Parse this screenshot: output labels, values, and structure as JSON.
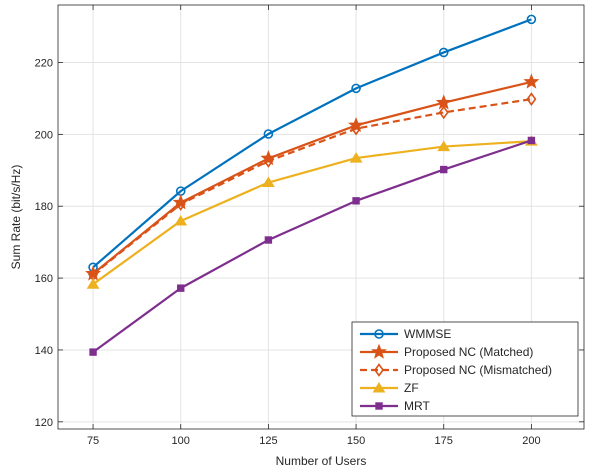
{
  "chart_data": {
    "type": "line",
    "xlabel": "Number of Users",
    "ylabel": "Sum Rate (bit/s/Hz)",
    "xlim": [
      65,
      215
    ],
    "ylim": [
      118,
      236
    ],
    "xticks": [
      75,
      100,
      125,
      150,
      175,
      200
    ],
    "yticks": [
      120,
      140,
      160,
      180,
      200,
      220
    ],
    "grid": true,
    "legend_position": "bottom-right",
    "x": [
      75,
      100,
      125,
      150,
      175,
      200
    ],
    "series": [
      {
        "name": "WMMSE",
        "color": "#0072BD",
        "marker": "circle",
        "dash": "solid",
        "values": [
          163.0,
          184.2,
          200.1,
          212.8,
          222.8,
          232.0
        ]
      },
      {
        "name": "Proposed NC (Matched)",
        "color": "#D95319",
        "marker": "star",
        "dash": "solid",
        "values": [
          161.2,
          181.0,
          193.3,
          202.5,
          208.8,
          214.6
        ]
      },
      {
        "name": "Proposed NC (Mismatched)",
        "color": "#D95319",
        "marker": "diamond",
        "dash": "dashed",
        "values": [
          161.0,
          180.6,
          192.6,
          201.6,
          206.1,
          209.8
        ]
      },
      {
        "name": "ZF",
        "color": "#EDB120",
        "marker": "triangle",
        "dash": "solid",
        "values": [
          158.3,
          175.9,
          186.6,
          193.4,
          196.6,
          198.1
        ]
      },
      {
        "name": "MRT",
        "color": "#7E2F8E",
        "marker": "square",
        "dash": "solid",
        "values": [
          139.4,
          157.2,
          170.6,
          181.5,
          190.2,
          198.3
        ]
      }
    ]
  }
}
